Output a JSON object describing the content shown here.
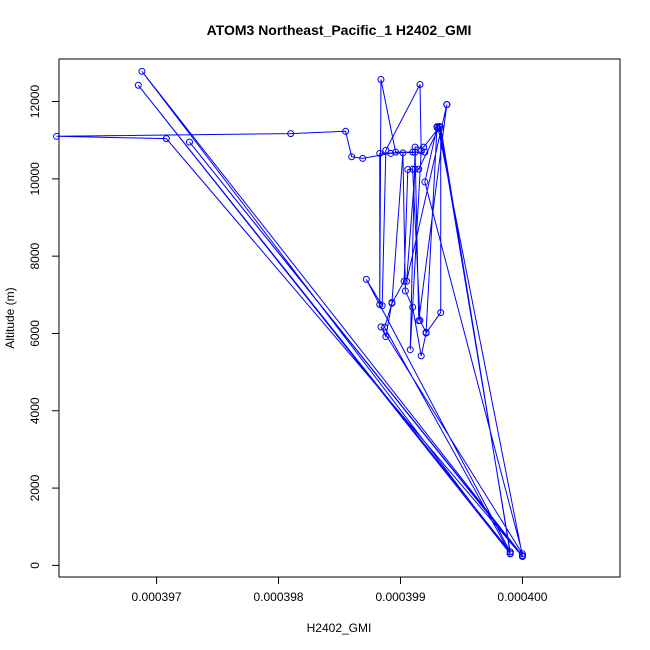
{
  "chart_data": {
    "type": "line",
    "title": "ATOM3 Northeast_Pacific_1 H2402_GMI",
    "xlabel": "H2402_GMI",
    "ylabel": "Altitude (m)",
    "xlim": [
      0.0003962,
      0.0004008
    ],
    "ylim": [
      -300,
      13100
    ],
    "x_ticks": [
      0.000397,
      0.000398,
      0.000399,
      0.0004
    ],
    "x_tick_labels": [
      "0.000397",
      "0.000398",
      "0.000399",
      "0.000400"
    ],
    "y_ticks": [
      0,
      2000,
      4000,
      6000,
      8000,
      10000,
      12000
    ],
    "y_tick_labels": [
      "0",
      "2000",
      "4000",
      "6000",
      "8000",
      "10000",
      "12000"
    ],
    "grid": false,
    "colors": {
      "series": "#0000ff",
      "frame": "#000000"
    },
    "series": [
      {
        "x": [
          0.0003999,
          0.00039685,
          0.0003999,
          0.00039688,
          0.0004,
          0.00039727,
          0.0004,
          0.00039708,
          0.00039618,
          0.0003981,
          0.00039855,
          0.0003986,
          0.00039869,
          0.00039892,
          0.0003991,
          0.0003992,
          0.00039883,
          0.00039883,
          0.00039884,
          0.00039896,
          0.00039912,
          0.00039915,
          0.00039938,
          0.00039938,
          0.00039905,
          0.00039912,
          0.00039915,
          0.00039932,
          0.00039932,
          0.0003999,
          0.00039872,
          0.00039885,
          0.00039888,
          0.00039916,
          0.00039917,
          0.00039908,
          0.00039912,
          0.00039919,
          0.00039931,
          0.0003993,
          0.0003992,
          0.0004,
          0.00039884,
          0.00039888,
          0.00039893,
          0.00039902,
          0.00039904,
          0.0003991,
          0.00039917,
          0.00039921,
          0.00039933,
          0.00039933,
          0.0003999,
          0.00039887,
          0.00039893,
          0.00039903,
          0.00039906,
          0.0003991,
          0.00039916,
          0.00039921,
          0.0003993,
          0.00039931,
          0.0004
        ],
        "y": [
          350,
          12420,
          300,
          12780,
          250,
          10950,
          230,
          11040,
          11100,
          11170,
          11230,
          10570,
          10530,
          10660,
          10690,
          10690,
          10660,
          6750,
          12570,
          10690,
          10690,
          6330,
          11920,
          11920,
          7350,
          10250,
          10250,
          11350,
          11350,
          350,
          7400,
          6720,
          10740,
          12440,
          10720,
          5580,
          10820,
          10820,
          11300,
          11330,
          9920,
          300,
          6170,
          5920,
          6800,
          10670,
          7100,
          6680,
          5420,
          6010,
          6540,
          11330,
          300,
          6160,
          6780,
          7350,
          10240,
          10250,
          6340,
          6030,
          11350,
          11300,
          250
        ]
      }
    ]
  }
}
